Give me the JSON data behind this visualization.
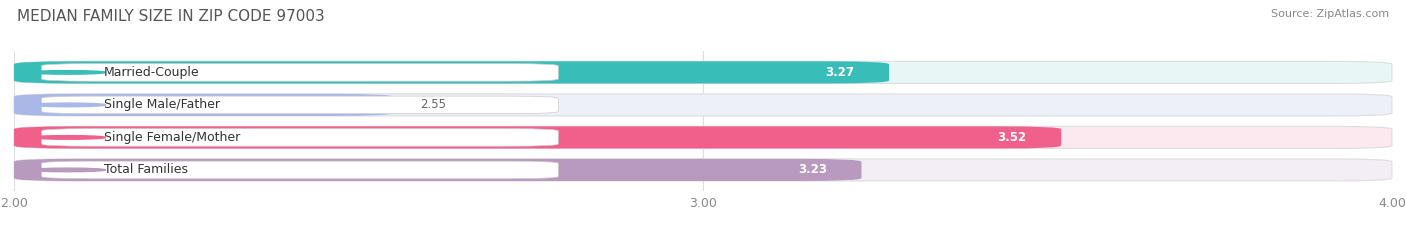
{
  "title": "MEDIAN FAMILY SIZE IN ZIP CODE 97003",
  "source": "Source: ZipAtlas.com",
  "categories": [
    "Married-Couple",
    "Single Male/Father",
    "Single Female/Mother",
    "Total Families"
  ],
  "values": [
    3.27,
    2.55,
    3.52,
    3.23
  ],
  "bar_colors": [
    "#39bdb8",
    "#aab8e8",
    "#f0608a",
    "#b89abe"
  ],
  "bar_bg_colors": [
    "#e8f6f6",
    "#eef0f9",
    "#fce8ef",
    "#f3eef5"
  ],
  "value_text_colors": [
    "#ffffff",
    "#666666",
    "#ffffff",
    "#ffffff"
  ],
  "xlim": [
    2.0,
    4.0
  ],
  "xmin": 2.0,
  "xmax": 4.0,
  "xticks": [
    2.0,
    3.0,
    4.0
  ],
  "xtick_labels": [
    "2.00",
    "3.00",
    "4.00"
  ],
  "label_fontsize": 9,
  "value_fontsize": 8.5,
  "title_fontsize": 11,
  "source_fontsize": 8,
  "bar_height": 0.68,
  "background_color": "#ffffff",
  "border_color": "#dddddd"
}
